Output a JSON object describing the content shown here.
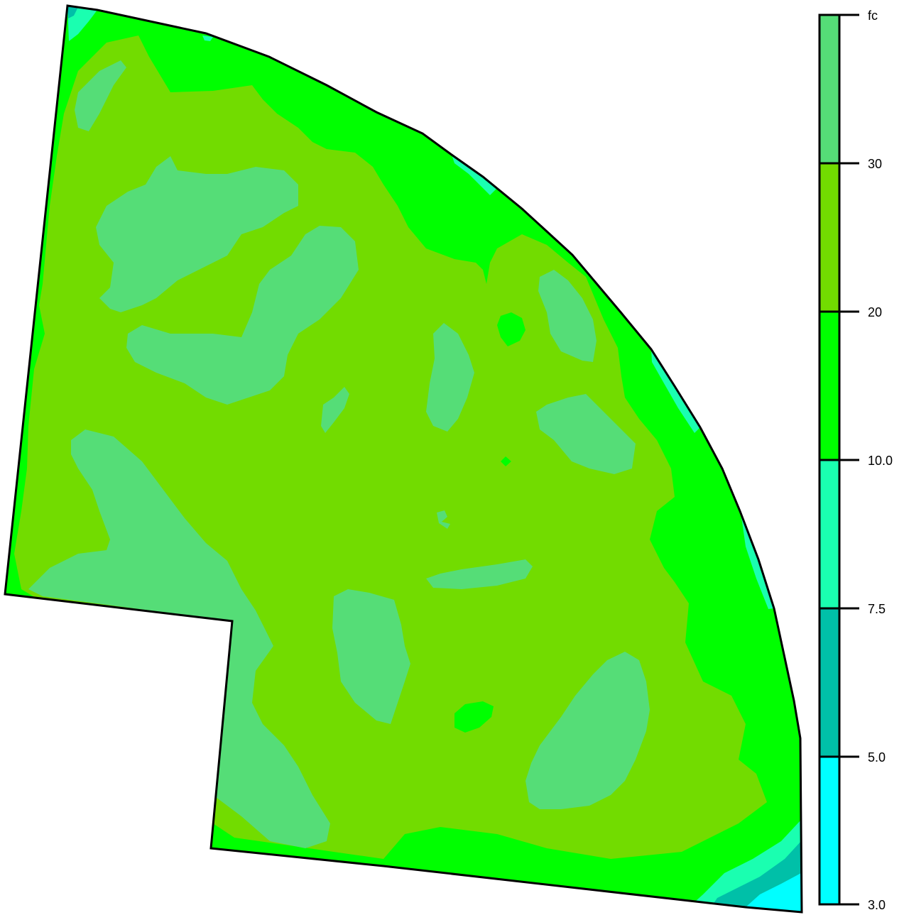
{
  "legend": {
    "unit_label": "fc",
    "ticks": [
      "30",
      "20",
      "10.0",
      "7.5",
      "5.0",
      "3.0"
    ],
    "bands": [
      {
        "range": "5.0 / 3.0",
        "color": "#00FFFF"
      },
      {
        "range": "7.5 / 5.0",
        "color": "#00C0A8"
      },
      {
        "range": "10.0 / 7.5",
        "color": "#1AFFB0"
      },
      {
        "range": "20 / 10.0",
        "color": "#00FF00"
      },
      {
        "range": "30 / 20",
        "color": "#72DC00"
      },
      {
        "range": "fc / 30",
        "color": "#55DD77"
      }
    ]
  },
  "colors": {
    "outline": "#000000",
    "level_3_5": "#00FFFF",
    "level_5_7_5": "#00C0A8",
    "level_7_5_10": "#1AFFB0",
    "level_10_20": "#00FF00",
    "level_20_30": "#72DC00",
    "level_30_plus": "#55DD77"
  }
}
